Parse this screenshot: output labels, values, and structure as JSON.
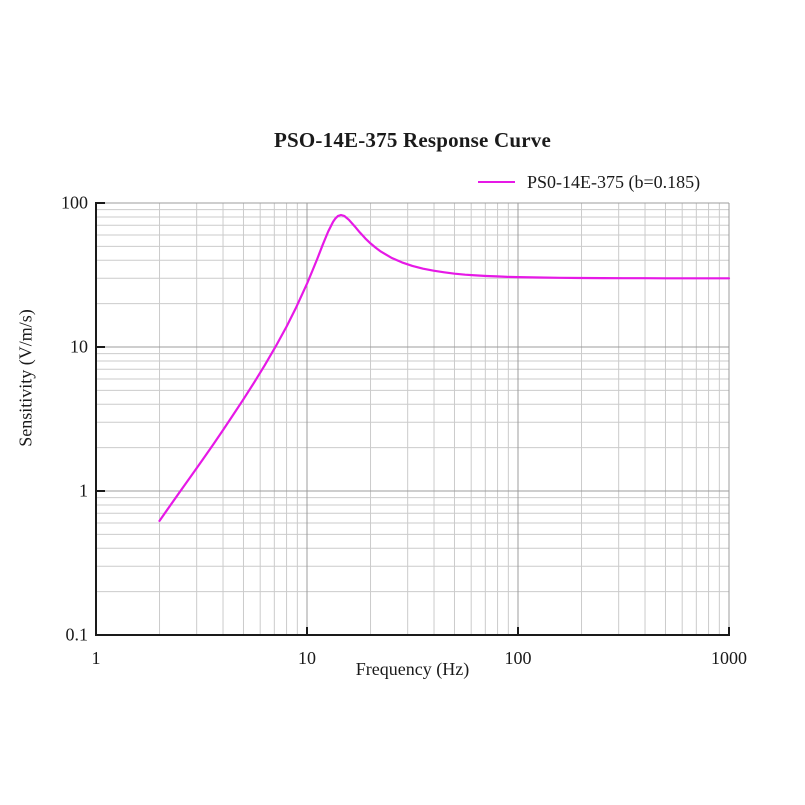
{
  "chart": {
    "title": "PSO-14E-375 Response Curve",
    "legend": {
      "label": "PS0-14E-375 (b=0.185)",
      "swatch_color": "#e619e6",
      "position": "top-right"
    },
    "x_axis": {
      "label": "Frequency (Hz)",
      "scale": "log",
      "tick_values": [
        1,
        10,
        100,
        1000
      ],
      "tick_labels": [
        "1",
        "10",
        "100",
        "1000"
      ]
    },
    "y_axis": {
      "label": "Sensitivity (V/m/s)",
      "scale": "log",
      "tick_values": [
        0.1,
        1,
        10,
        100
      ],
      "tick_labels": [
        "0.1",
        "1",
        "10",
        "100"
      ]
    }
  },
  "colors": {
    "background": "#ffffff",
    "text": "#1a1a1a",
    "axis": "#1a1a1a",
    "grid_major": "#9c9c9c",
    "grid_minor": "#cbcbcb",
    "curve": "#e619e6"
  },
  "chart_data": {
    "type": "line",
    "title": "PSO-14E-375 Response Curve",
    "xlabel": "Frequency (Hz)",
    "ylabel": "Sensitivity (V/m/s)",
    "xscale": "log",
    "yscale": "log",
    "xlim": [
      1,
      1000
    ],
    "ylim": [
      0.1,
      100
    ],
    "grid": "major-and-minor",
    "legend_position": "top-right",
    "series": [
      {
        "name": "PS0-14E-375 (b=0.185)",
        "color": "#e619e6",
        "peak": [
          14.5,
          82.5
        ],
        "flat_level": 30,
        "points": [
          [
            2,
            0.62
          ],
          [
            2.2,
            0.76
          ],
          [
            2.5,
            0.99
          ],
          [
            2.8,
            1.25
          ],
          [
            3.2,
            1.65
          ],
          [
            3.6,
            2.11
          ],
          [
            4,
            2.65
          ],
          [
            4.5,
            3.43
          ],
          [
            5,
            4.34
          ],
          [
            5.6,
            5.63
          ],
          [
            6.3,
            7.46
          ],
          [
            7.1,
            10.07
          ],
          [
            8,
            13.88
          ],
          [
            8.9,
            18.92
          ],
          [
            10,
            27.5
          ],
          [
            10.6,
            33.7
          ],
          [
            11.2,
            41.2
          ],
          [
            11.9,
            51.7
          ],
          [
            12.6,
            63.4
          ],
          [
            13.3,
            74.2
          ],
          [
            13.6,
            77.8
          ],
          [
            14,
            81.1
          ],
          [
            14.5,
            82.5
          ],
          [
            15,
            81.4
          ],
          [
            15.8,
            76.5
          ],
          [
            16.8,
            69.1
          ],
          [
            17.8,
            62.5
          ],
          [
            18.9,
            56.8
          ],
          [
            20,
            52.4
          ],
          [
            21.2,
            48.8
          ],
          [
            22.4,
            46.0
          ],
          [
            25.1,
            41.7
          ],
          [
            28.2,
            38.7
          ],
          [
            31.6,
            36.6
          ],
          [
            35.5,
            35.0
          ],
          [
            39.8,
            33.9
          ],
          [
            44.7,
            33.0
          ],
          [
            50.1,
            32.3
          ],
          [
            56.2,
            31.8
          ],
          [
            63.1,
            31.4
          ],
          [
            70.8,
            31.1
          ],
          [
            79.4,
            30.9
          ],
          [
            89.1,
            30.7
          ],
          [
            100,
            30.6
          ],
          [
            126,
            30.4
          ],
          [
            158,
            30.25
          ],
          [
            200,
            30.15
          ],
          [
            251,
            30.1
          ],
          [
            316,
            30.06
          ],
          [
            398,
            30.04
          ],
          [
            501,
            30.02
          ],
          [
            631,
            30.01
          ],
          [
            794,
            30.01
          ],
          [
            1000,
            30.0
          ]
        ]
      }
    ]
  }
}
